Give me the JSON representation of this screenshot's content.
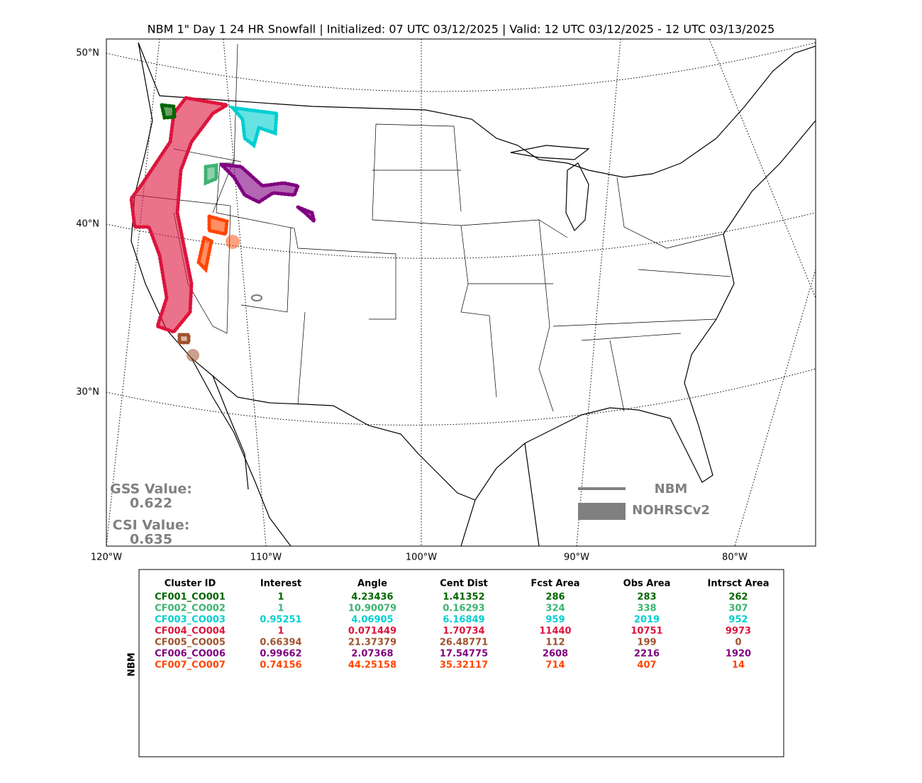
{
  "title": "NBM 1\" Day 1 24 HR Snowfall | Initialized: 07 UTC 03/12/2025 | Valid: 12 UTC 03/12/2025 - 12 UTC 03/13/2025",
  "map": {
    "lat_labels": [
      "50°N",
      "40°N",
      "30°N"
    ],
    "lon_labels": [
      "120°W",
      "110°W",
      "100°W",
      "90°W",
      "80°W"
    ],
    "scores": {
      "gss_label": "GSS Value:",
      "gss_value": "0.622",
      "csi_label": "CSI Value:",
      "csi_value": "0.635"
    },
    "legend": {
      "forecast": "NBM",
      "observed": "NOHRSCv2"
    }
  },
  "table": {
    "side_label": "NBM",
    "header": [
      "Cluster ID",
      "Interest",
      "Angle",
      "Cent Dist",
      "Fcst Area",
      "Obs Area",
      "Intrsct Area"
    ],
    "rows": [
      {
        "color": "#006400",
        "cells": [
          "CF001_CO001",
          "1",
          "4.23436",
          "1.41352",
          "286",
          "283",
          "262"
        ]
      },
      {
        "color": "#3cb371",
        "cells": [
          "CF002_CO002",
          "1",
          "10.90079",
          "0.16293",
          "324",
          "338",
          "307"
        ]
      },
      {
        "color": "#00ced1",
        "cells": [
          "CF003_CO003",
          "0.95251",
          "4.06905",
          "6.16849",
          "959",
          "2019",
          "952"
        ]
      },
      {
        "color": "#dc143c",
        "cells": [
          "CF004_CO004",
          "1",
          "0.071449",
          "1.70734",
          "11440",
          "10751",
          "9973"
        ]
      },
      {
        "color": "#a0522d",
        "cells": [
          "CF005_CO005",
          "0.66394",
          "21.37379",
          "26.48771",
          "112",
          "199",
          "0"
        ]
      },
      {
        "color": "#800080",
        "cells": [
          "CF006_CO006",
          "0.99662",
          "2.07368",
          "17.54775",
          "2608",
          "2216",
          "1920"
        ]
      },
      {
        "color": "#ff4500",
        "cells": [
          "CF007_CO007",
          "0.74156",
          "44.25158",
          "35.32117",
          "714",
          "407",
          "14"
        ]
      }
    ]
  }
}
